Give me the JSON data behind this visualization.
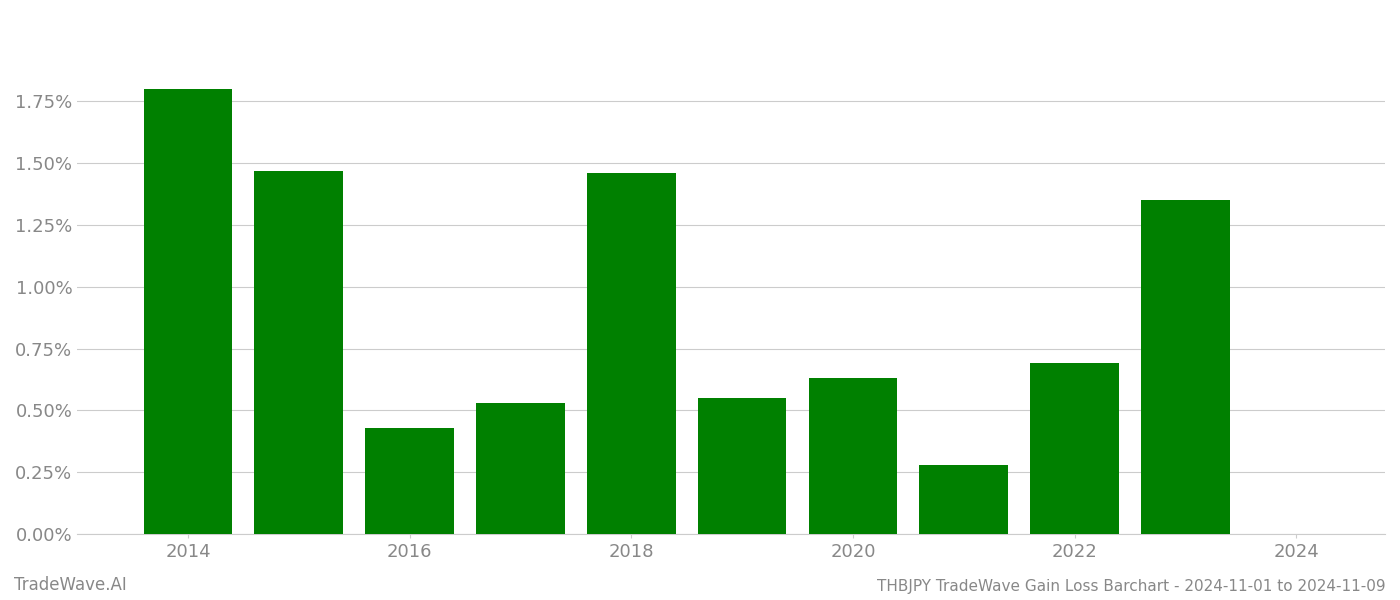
{
  "years": [
    2014,
    2015,
    2016,
    2017,
    2018,
    2019,
    2020,
    2021,
    2022,
    2023
  ],
  "values": [
    0.018,
    0.0147,
    0.0043,
    0.0053,
    0.0146,
    0.0055,
    0.0063,
    0.0028,
    0.0069,
    0.0135
  ],
  "bar_color": "#008000",
  "background_color": "#ffffff",
  "grid_color": "#cccccc",
  "title": "THBJPY TradeWave Gain Loss Barchart - 2024-11-01 to 2024-11-09",
  "watermark_left": "TradeWave.AI",
  "ylim_min": 0.0,
  "ylim_max": 0.021,
  "ytick_values": [
    0.0,
    0.0025,
    0.005,
    0.0075,
    0.01,
    0.0125,
    0.015,
    0.0175
  ],
  "xlim_min": 2013.0,
  "xlim_max": 2024.8,
  "xtick_positions": [
    2014,
    2016,
    2018,
    2020,
    2022,
    2024
  ],
  "bar_width": 0.8,
  "xlabel_fontsize": 13,
  "ylabel_fontsize": 13,
  "tick_label_color": "#888888",
  "title_fontsize": 11,
  "watermark_fontsize": 12
}
